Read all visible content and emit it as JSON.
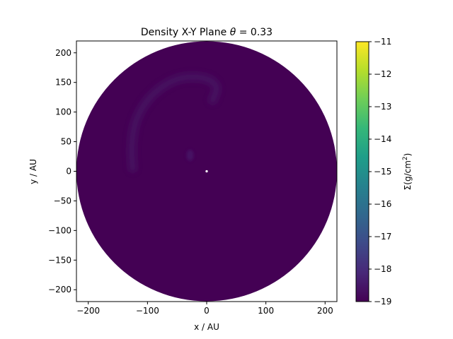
{
  "chart_data": {
    "type": "heatmap",
    "title_prefix": "Density X-Y Plane ",
    "title_symbol": "θ",
    "title_suffix": " =  0.33",
    "xlabel": "x / AU",
    "ylabel": "y / AU",
    "xlim": [
      -220,
      220
    ],
    "ylim": [
      -220,
      220
    ],
    "xticks": [
      -200,
      -100,
      0,
      100,
      200
    ],
    "yticks": [
      -200,
      -150,
      -100,
      -50,
      0,
      50,
      100,
      150,
      200
    ],
    "tick_labels_x": [
      "−200",
      "−100",
      "0",
      "100",
      "200"
    ],
    "tick_labels_y": [
      "−200",
      "−150",
      "−100",
      "−50",
      "0",
      "50",
      "100",
      "150",
      "200"
    ],
    "disk_radius": 220,
    "inner_hole_radius": 2,
    "colormap": "viridis",
    "vmin": -19,
    "vmax": -11,
    "colorbar_ticks": [
      -19,
      -18,
      -17,
      -16,
      -15,
      -14,
      -13,
      -12,
      -11
    ],
    "colorbar_tick_labels": [
      "−19",
      "−18",
      "−17",
      "−16",
      "−15",
      "−14",
      "−13",
      "−12",
      "−11"
    ],
    "colorbar_label_prefix": "Σ(g/cm",
    "colorbar_label_sup": "2",
    "colorbar_label_suffix": ")",
    "background_value": -19,
    "features": [
      {
        "kind": "spiral-arm",
        "points": [
          [
            -125,
            5
          ],
          [
            -130,
            60
          ],
          [
            -105,
            120
          ],
          [
            -55,
            158
          ],
          [
            -5,
            160
          ],
          [
            20,
            145
          ],
          [
            10,
            120
          ]
        ],
        "value": -18.6
      },
      {
        "kind": "clump",
        "center": [
          -28,
          27
        ],
        "value": -18.5
      }
    ],
    "colors": {
      "viridis_stops": [
        "#440154",
        "#482878",
        "#3e4a89",
        "#31688e",
        "#26828e",
        "#1f9e89",
        "#35b779",
        "#6ece58",
        "#b5de2b",
        "#fde725"
      ]
    }
  }
}
